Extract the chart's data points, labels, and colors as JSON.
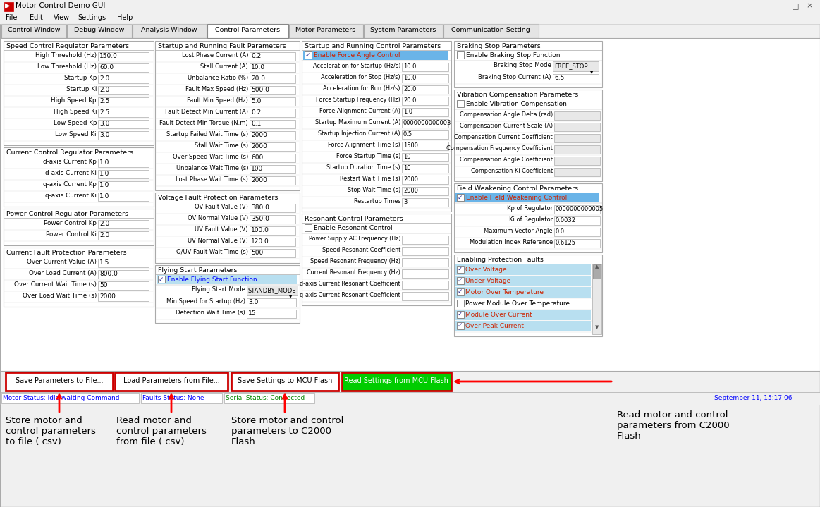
{
  "window_title": "Motor Control Demo GUI",
  "tab_active": "Control Parameters",
  "tabs": [
    "Control Window",
    "Debug Window",
    "Analysis Window",
    "Control Parameters",
    "Motor Parameters",
    "System Parameters",
    "Communication Setting"
  ],
  "menu_items": [
    "File",
    "Edit",
    "View",
    "Settings",
    "Help"
  ],
  "col1_speed_params": [
    [
      "High Threshold (Hz)",
      "150.0"
    ],
    [
      "Low Threshold (Hz)",
      "60.0"
    ],
    [
      "Startup Kp",
      "2.0"
    ],
    [
      "Startup Ki",
      "2.0"
    ],
    [
      "High Speed Kp",
      "2.5"
    ],
    [
      "High Speed Ki",
      "2.5"
    ],
    [
      "Low Speed Kp",
      "3.0"
    ],
    [
      "Low Speed Ki",
      "3.0"
    ]
  ],
  "col1_curr_params": [
    [
      "d-axis Current Kp",
      "1.0"
    ],
    [
      "d-axis Current Ki",
      "1.0"
    ],
    [
      "q-axis Current Kp",
      "1.0"
    ],
    [
      "q-axis Current Ki",
      "1.0"
    ]
  ],
  "col1_power_params": [
    [
      "Power Control Kp",
      "2.0"
    ],
    [
      "Power Control Ki",
      "2.0"
    ]
  ],
  "col1_fault_params": [
    [
      "Over Current Value (A)",
      "1.5"
    ],
    [
      "Over Load Current (A)",
      "800.0"
    ],
    [
      "Over Current Wait Time (s)",
      "50"
    ],
    [
      "Over Load Wait Time (s)",
      "2000"
    ]
  ],
  "col2_startup_fault_params": [
    [
      "Lost Phase Current (A)",
      "0.2"
    ],
    [
      "Stall Current (A)",
      "10.0"
    ],
    [
      "Unbalance Ratio (%)",
      "20.0"
    ],
    [
      "Fault Max Speed (Hz)",
      "500.0"
    ],
    [
      "Fault Min Speed (Hz)",
      "5.0"
    ],
    [
      "Fault Detect Min Current (A)",
      "0.2"
    ],
    [
      "Fault Detect Min Torque (N.m)",
      "0.1"
    ],
    [
      "Startup Failed Wait Time (s)",
      "2000"
    ],
    [
      "Stall Wait Time (s)",
      "2000"
    ],
    [
      "Over Speed Wait Time (s)",
      "600"
    ],
    [
      "Unbalance Wait Time (s)",
      "100"
    ],
    [
      "Lost Phase Wait Time (s)",
      "2000"
    ]
  ],
  "col2_volt_params": [
    [
      "OV Fault Value (V)",
      "380.0"
    ],
    [
      "OV Normal Value (V)",
      "350.0"
    ],
    [
      "UV Fault Value (V)",
      "100.0"
    ],
    [
      "UV Normal Value (V)",
      "120.0"
    ],
    [
      "O/UV Fault Wait Time (s)",
      "500"
    ]
  ],
  "col2_fly_params": [
    [
      "Flying Start Mode",
      "STANDBY_MODE"
    ],
    [
      "Min Speed for Startup (Hz)",
      "3.0"
    ],
    [
      "Detection Wait Time (s)",
      "15"
    ]
  ],
  "col3_ctrl_params": [
    [
      "Acceleration for Startup (Hz/s)",
      "10.0"
    ],
    [
      "Acceleration for Stop (Hz/s)",
      "10.0"
    ],
    [
      "Acceleration for Run (Hz/s)",
      "20.0"
    ],
    [
      "Force Startup Frequency (Hz)",
      "20.0"
    ],
    [
      "Force Alignment Current (A)",
      "1.0"
    ],
    [
      "Startup Maximum Current (A)",
      "0000000000003"
    ],
    [
      "Startup Injection Current (A)",
      "0.5"
    ],
    [
      "Force Alignment Time (s)",
      "1500"
    ],
    [
      "Force Startup Time (s)",
      "10"
    ],
    [
      "Startup Duration Time (s)",
      "10"
    ],
    [
      "Restart Wait Time (s)",
      "2000"
    ],
    [
      "Stop Wait Time (s)",
      "2000"
    ],
    [
      "Restartup Times",
      "3"
    ]
  ],
  "col3_resonant_params": [
    [
      "Power Supply AC Frequency (Hz)",
      ""
    ],
    [
      "Speed Resonant Coefficient",
      ""
    ],
    [
      "Speed Resonant Frequency (Hz)",
      ""
    ],
    [
      "Current Resonant Frequency (Hz)",
      ""
    ],
    [
      "d-axis Current Resonant Coefficient",
      ""
    ],
    [
      "q-axis Current Resonant Coefficient",
      ""
    ]
  ],
  "col4_braking_params": [
    [
      "Braking Stop Mode",
      "FREE_STOP"
    ],
    [
      "Braking Stop Current (A)",
      "6.5"
    ]
  ],
  "col4_vib_params": [
    [
      "Compensation Angle Delta (rad)",
      ""
    ],
    [
      "Compensation Current Scale (A)",
      ""
    ],
    [
      "Compensation Current Coefficient",
      ""
    ],
    [
      "Compensation Frequency Coefficient",
      ""
    ],
    [
      "Compensation Angle Coefficient",
      ""
    ],
    [
      "Compensation Ki Coefficient",
      ""
    ]
  ],
  "col4_fw_params": [
    [
      "Kp of Regulator",
      "0000000000005"
    ],
    [
      "Ki of Regulator",
      "0.0032"
    ],
    [
      "Maximum Vector Angle",
      "0.0"
    ],
    [
      "Modulation Index Reference",
      "0.6125"
    ]
  ],
  "col4_prot_faults": [
    [
      "Over Voltage",
      true
    ],
    [
      "Under Voltage",
      true
    ],
    [
      "Motor Over Temperature",
      true
    ],
    [
      "Power Module Over Temperature",
      false
    ],
    [
      "Module Over Current",
      true
    ],
    [
      "Over Peak Current",
      true
    ]
  ],
  "btn_save_file": "Save Parameters to File...",
  "btn_load_file": "Load Parameters from File...",
  "btn_save_mcu": "Save Settings to MCU Flash",
  "btn_read_mcu": "Read Settings from MCU Flash",
  "ann1": "Store motor and\ncontrol parameters\nto file (.csv)",
  "ann2": "Read motor and\ncontrol parameters\nfrom file (.csv)",
  "ann3": "Store motor and control\nparameters to C2000\nFlash",
  "ann4": "Read motor and control\nparameters from C2000\nFlash",
  "status1": "Motor Status: Idle waiting Command",
  "status2": "Faults Status: None",
  "status3": "Serial Status: Connected",
  "status4": "September 11, 15:17:06",
  "highlight_blue": "#6ab4e8",
  "highlight_light": "#b8dff0",
  "green_btn": "#00cc00",
  "red_border": "#cc0000",
  "gray_field": "#e8e8e8"
}
